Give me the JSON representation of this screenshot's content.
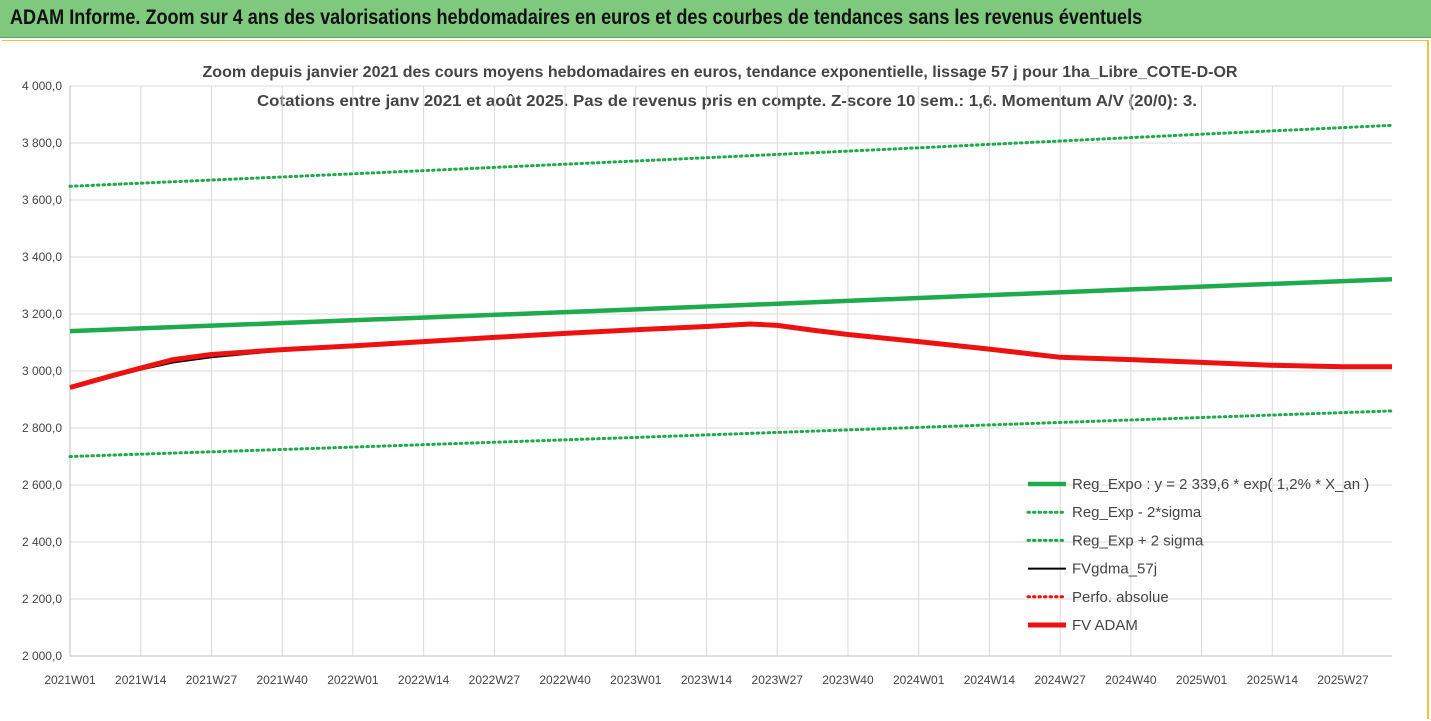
{
  "header": {
    "title": "ADAM Informe. Zoom sur 4 ans des valorisations hebdomadaires en euros et des courbes de tendances sans les revenus éventuels"
  },
  "colors": {
    "green": "#1faa4b",
    "red": "#ee1111",
    "black": "#000000",
    "grid": "#d9d9d9",
    "banner": "#7fc97f"
  },
  "chart_data": {
    "type": "line",
    "title": "Zoom depuis janvier 2021 des cours moyens hebdomadaires en euros, tendance exponentielle, lissage 57 j pour 1ha_Libre_COTE-D-OR",
    "subtitle": "Cotations entre janv 2021 et août 2025.  Pas de revenus pris en compte. Z-score 10 sem.: 1,6. Momentum A/V (20/0): 3.",
    "xlabel": "",
    "ylabel": "",
    "ylim": [
      2000,
      4000
    ],
    "yticks": [
      "4 000,0",
      "3 800,0",
      "3 600,0",
      "3 400,0",
      "3 200,0",
      "3 000,0",
      "2 800,0",
      "2 600,0",
      "2 400,0",
      "2 200,0",
      "2 000,0"
    ],
    "xticks": [
      "2021W01",
      "2021W14",
      "2021W27",
      "2021W40",
      "2022W01",
      "2022W14",
      "2022W27",
      "2022W40",
      "2023W01",
      "2023W14",
      "2023W27",
      "2023W40",
      "2024W01",
      "2024W14",
      "2024W27",
      "2024W40",
      "2025W01",
      "2025W14",
      "2025W27"
    ],
    "grid": true,
    "legend_position": "bottom-right",
    "series": [
      {
        "name": "Reg_Expo : y = 2 339,6 * exp( 1,2% *  X_an )",
        "style": "solid-thick",
        "color": "#1faa4b",
        "x": [
          "2021W01",
          "2022W01",
          "2023W01",
          "2024W01",
          "2025W01",
          "2025W36"
        ],
        "values": [
          3140,
          3178,
          3216,
          3256,
          3296,
          3322
        ]
      },
      {
        "name": "Reg_Exp - 2*sigma",
        "style": "dotted",
        "color": "#1faa4b",
        "x": [
          "2021W01",
          "2022W01",
          "2023W01",
          "2024W01",
          "2025W01",
          "2025W36"
        ],
        "values": [
          2700,
          2733,
          2767,
          2802,
          2837,
          2860
        ]
      },
      {
        "name": "Reg_Exp + 2 sigma",
        "style": "dotted",
        "color": "#1faa4b",
        "x": [
          "2021W01",
          "2022W01",
          "2023W01",
          "2024W01",
          "2025W01",
          "2025W36"
        ],
        "values": [
          3648,
          3692,
          3737,
          3783,
          3831,
          3862
        ]
      },
      {
        "name": "FVgdma_57j",
        "style": "solid",
        "color": "#000000",
        "x": [
          "2021W01",
          "2021W09",
          "2021W14",
          "2021W20",
          "2021W27",
          "2021W40",
          "2022W01",
          "2022W14",
          "2022W27",
          "2022W40",
          "2023W01",
          "2023W14",
          "2023W22",
          "2023W27",
          "2023W34",
          "2023W40",
          "2024W01",
          "2024W14",
          "2024W27",
          "2024W40",
          "2025W01",
          "2025W14",
          "2025W27",
          "2025W36"
        ],
        "values": [
          2942,
          2980,
          3005,
          3030,
          3048,
          3072,
          3085,
          3100,
          3115,
          3130,
          3142,
          3152,
          3160,
          3158,
          3140,
          3128,
          3105,
          3078,
          3052,
          3040,
          3030,
          3022,
          3015,
          3015
        ]
      },
      {
        "name": "Perfo. absolue",
        "style": "dotted",
        "color": "#ee1111",
        "x": [],
        "values": []
      },
      {
        "name": "FV ADAM",
        "style": "solid-thick",
        "color": "#ee1111",
        "x": [
          "2021W01",
          "2021W09",
          "2021W14",
          "2021W20",
          "2021W27",
          "2021W40",
          "2022W01",
          "2022W14",
          "2022W27",
          "2022W40",
          "2023W01",
          "2023W14",
          "2023W22",
          "2023W27",
          "2023W34",
          "2023W40",
          "2024W01",
          "2024W14",
          "2024W27",
          "2024W40",
          "2025W01",
          "2025W14",
          "2025W27",
          "2025W36"
        ],
        "values": [
          2942,
          2985,
          3010,
          3040,
          3058,
          3075,
          3088,
          3103,
          3118,
          3132,
          3145,
          3156,
          3165,
          3160,
          3142,
          3128,
          3103,
          3077,
          3048,
          3040,
          3030,
          3020,
          3015,
          3015
        ]
      }
    ]
  }
}
